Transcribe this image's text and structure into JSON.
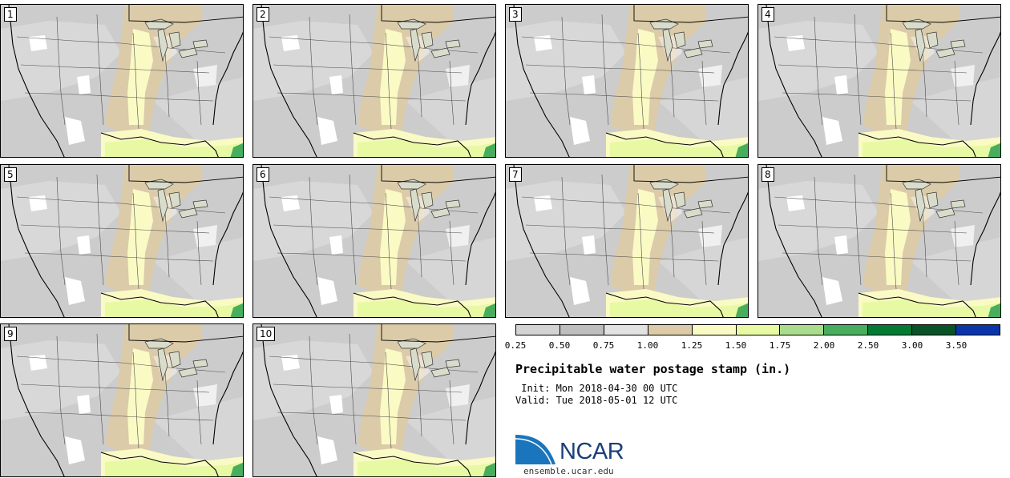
{
  "panels": [
    {
      "label": "1"
    },
    {
      "label": "2"
    },
    {
      "label": "3"
    },
    {
      "label": "4"
    },
    {
      "label": "5"
    },
    {
      "label": "6"
    },
    {
      "label": "7"
    },
    {
      "label": "8"
    },
    {
      "label": "9"
    },
    {
      "label": "10"
    }
  ],
  "legend": {
    "colors": [
      "#d3d3d3",
      "#bebebe",
      "#e2e2e2",
      "#dbcba8",
      "#fafac4",
      "#e8f9a4",
      "#a9dd8d",
      "#48ad5d",
      "#047a35",
      "#0a5228",
      "#0a35aa"
    ],
    "ticks": [
      "0.25",
      "0.50",
      "0.75",
      "1.00",
      "1.25",
      "1.50",
      "1.75",
      "2.00",
      "2.50",
      "3.00",
      "3.50"
    ]
  },
  "title": "Precipitable water postage stamp (in.)",
  "init": " Init: Mon 2018-04-30 00 UTC",
  "valid": "Valid: Tue 2018-05-01 12 UTC",
  "logo": {
    "text": "NCAR",
    "url": "ensemble.ucar.edu"
  }
}
